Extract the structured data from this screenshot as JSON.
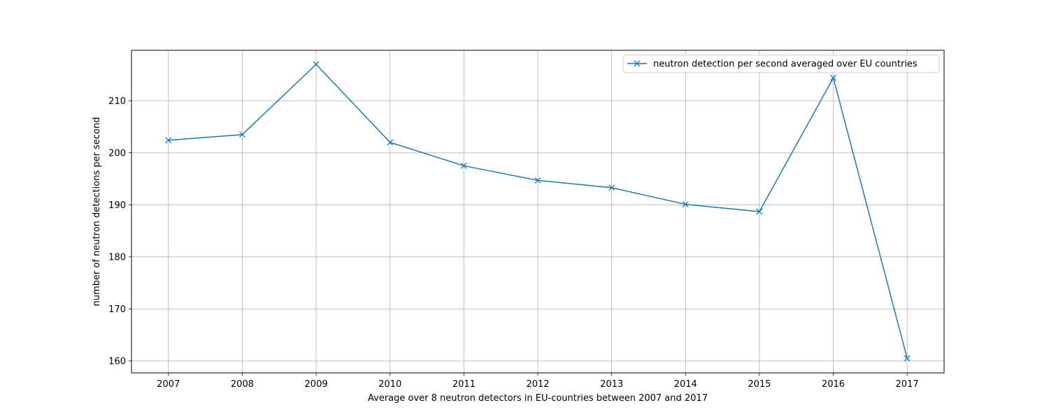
{
  "chart_data": {
    "type": "line",
    "title": "",
    "xlabel": "Average over 8 neutron detectors in EU-countries between 2007 and 2017",
    "ylabel": "number of neutron detections per second",
    "x": [
      2007,
      2008,
      2009,
      2010,
      2011,
      2012,
      2013,
      2014,
      2015,
      2016,
      2017
    ],
    "xlim": [
      2006.5,
      2017.5
    ],
    "ylim": [
      157.7,
      219.7
    ],
    "yticks": [
      160,
      170,
      180,
      190,
      200,
      210
    ],
    "grid": true,
    "legend_position": "top-right",
    "series": [
      {
        "name": "neutron detection per second averaged over EU countries",
        "marker": "x",
        "color": "#1f77b4",
        "values": [
          202.4,
          203.5,
          217.0,
          202.0,
          197.5,
          194.7,
          193.3,
          190.1,
          188.7,
          214.4,
          160.5
        ]
      }
    ]
  }
}
